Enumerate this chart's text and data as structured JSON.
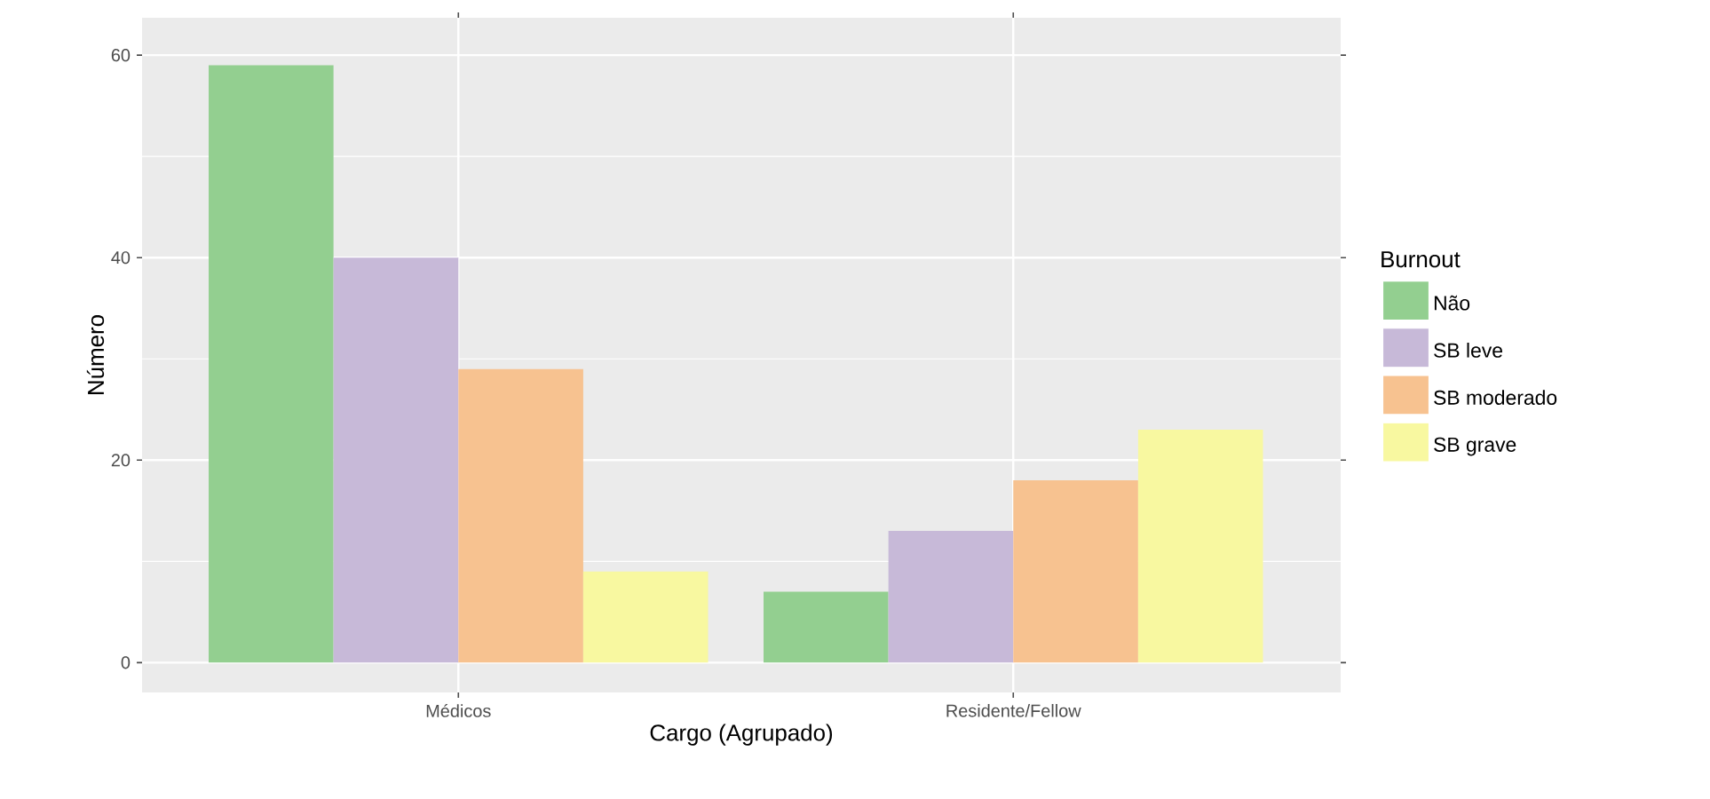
{
  "chart_data": {
    "type": "bar",
    "xlabel": "Cargo (Agrupado)",
    "ylabel": "Número",
    "legend_title": "Burnout",
    "legend": "right",
    "grid": true,
    "categories": [
      "Médicos",
      "Residente/Fellow"
    ],
    "ylim": [
      -2.95,
      63.7
    ],
    "yticks": [
      0,
      20,
      40,
      60
    ],
    "series": [
      {
        "name": "Não",
        "color": "#93cf90",
        "values": [
          59,
          7
        ]
      },
      {
        "name": "SB leve",
        "color": "#c7b9d8",
        "values": [
          40,
          13
        ]
      },
      {
        "name": "SB moderado",
        "color": "#f7c290",
        "values": [
          29,
          18
        ]
      },
      {
        "name": "SB grave",
        "color": "#f8f8a0",
        "values": [
          9,
          23
        ]
      }
    ]
  }
}
